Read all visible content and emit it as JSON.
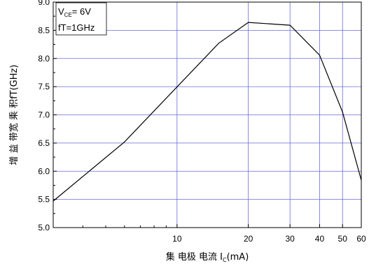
{
  "chart_data": {
    "type": "line",
    "xscale": "log",
    "xlim": [
      3,
      60
    ],
    "ylim": [
      5.0,
      9.0
    ],
    "x_ticks": [
      10,
      20,
      30,
      40,
      50,
      60
    ],
    "x_tick_labels": [
      "10",
      "20",
      "30",
      "40",
      "50",
      "60"
    ],
    "y_ticks": [
      5.0,
      5.5,
      6.0,
      6.5,
      7.0,
      7.5,
      8.0,
      8.5,
      9.0
    ],
    "y_tick_labels": [
      "5.0",
      "5.5",
      "6.0",
      "6.5",
      "7.0",
      "7.5",
      "8.0",
      "8.5",
      "9.0"
    ],
    "grid": true,
    "grid_color": "#6a6ad8",
    "line_color": "#000000",
    "xlabel_prefix": "集 电极 电流 I",
    "xlabel_sub": "C",
    "xlabel_suffix": "(mA)",
    "ylabel": "增 益 带宽 乘 积fT(GHz)",
    "legend": {
      "placement": "top-left",
      "line1_prefix": "V",
      "line1_sub": "CE",
      "line1_suffix": "= 6V",
      "line2": "fT=1GHz"
    },
    "series": [
      {
        "x": [
          3,
          6,
          15,
          20,
          30,
          40,
          50,
          60
        ],
        "y": [
          5.47,
          6.52,
          8.27,
          8.64,
          8.59,
          8.06,
          7.05,
          5.84
        ]
      }
    ]
  }
}
